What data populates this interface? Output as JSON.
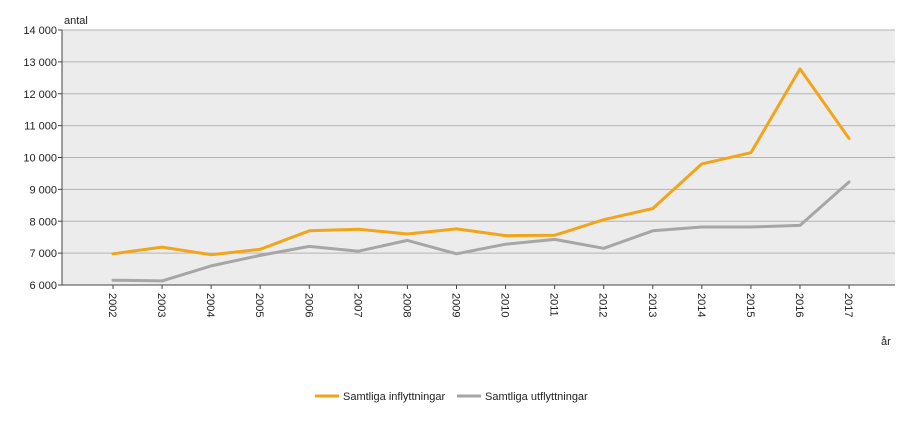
{
  "chart_data": {
    "type": "line",
    "title": "",
    "ylabel": "antal",
    "xlabel": "år",
    "x": [
      "2002",
      "2003",
      "2004",
      "2005",
      "2006",
      "2007",
      "2008",
      "2009",
      "2010",
      "2011",
      "2012",
      "2013",
      "2014",
      "2015",
      "2016",
      "2017"
    ],
    "ylim": [
      6000,
      14000
    ],
    "yticks": [
      6000,
      7000,
      8000,
      9000,
      10000,
      11000,
      12000,
      13000,
      14000
    ],
    "ytick_labels": [
      "6 000",
      "7 000",
      "8 000",
      "9 000",
      "10 000",
      "11 000",
      "12 000",
      "13 000",
      "14 000"
    ],
    "grid": true,
    "legend_position": "bottom-center",
    "plot_background": "#ececec",
    "series": [
      {
        "name": "Samtliga inflyttningar",
        "color": "#f2a51a",
        "values": [
          6980,
          7190,
          6950,
          7120,
          7700,
          7750,
          7600,
          7760,
          7550,
          7560,
          8050,
          8400,
          9800,
          10150,
          12780,
          10600
        ]
      },
      {
        "name": "Samtliga utflyttningar",
        "color": "#a6a6a6",
        "values": [
          6150,
          6130,
          6600,
          6930,
          7210,
          7060,
          7400,
          6980,
          7280,
          7430,
          7150,
          7700,
          7820,
          7820,
          7870,
          9230
        ]
      }
    ]
  }
}
